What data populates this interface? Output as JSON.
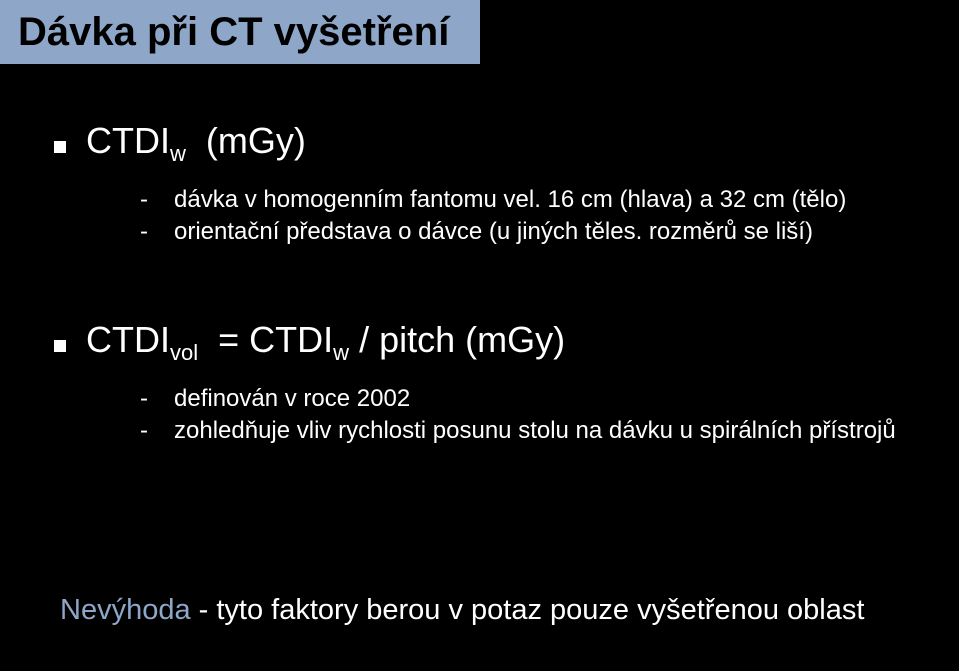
{
  "title": "Dávka při CT vyšetření",
  "section1": {
    "heading_prefix": "CTDI",
    "heading_sub": "w",
    "heading_unit": "(mGy)",
    "items": [
      "dávka v homogenním fantomu vel. 16 cm (hlava) a 32 cm (tělo)",
      "orientační představa o dávce (u jiných těles. rozměrů se liší)"
    ]
  },
  "section2": {
    "heading_prefix": "CTDI",
    "heading_sub": "vol",
    "heading_mid": "= CTDI",
    "heading_sub2": "w",
    "heading_suffix": "/ pitch   (mGy)",
    "items": [
      "definován v roce 2002",
      "zohledňuje vliv rychlosti posunu stolu na dávku u spirálních přístrojů"
    ]
  },
  "footer": {
    "blue": "Nevýhoda",
    "rest": " - tyto faktory berou v potaz pouze vyšetřenou oblast"
  },
  "colors": {
    "background": "#000000",
    "accent": "#8ea7c8",
    "text": "#ffffff"
  }
}
